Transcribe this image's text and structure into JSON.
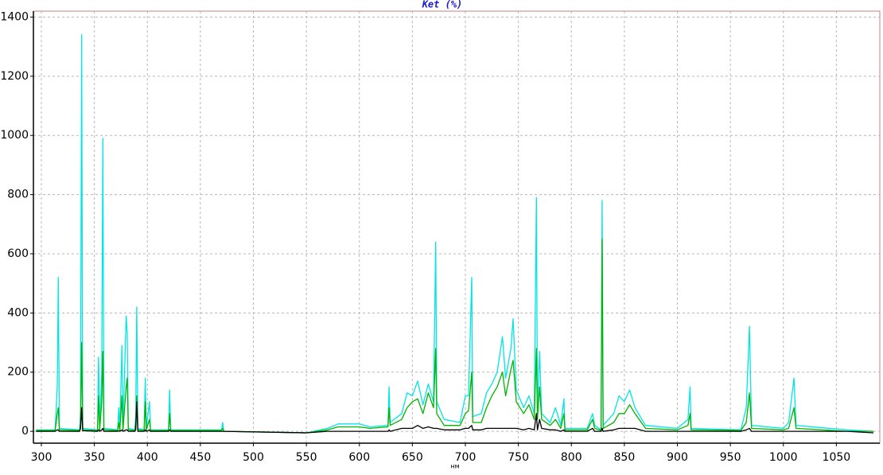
{
  "chart_data": {
    "type": "line",
    "title": "Ket (%)",
    "x_label": "нм",
    "x": [
      295,
      313,
      315,
      316,
      317,
      336,
      337,
      338,
      339,
      353,
      354,
      355,
      357,
      358,
      359,
      372,
      373,
      374,
      376,
      377,
      380,
      381,
      382,
      388,
      389,
      390,
      391,
      397,
      398,
      399,
      402,
      403,
      420,
      421,
      422,
      470,
      471,
      472,
      550,
      570,
      580,
      600,
      610,
      627,
      628,
      629,
      640,
      645,
      650,
      655,
      660,
      665,
      670,
      672,
      673,
      680,
      695,
      700,
      703,
      706,
      707,
      715,
      720,
      725,
      730,
      735,
      738,
      743,
      745,
      748,
      755,
      760,
      765,
      767,
      768,
      770,
      772,
      780,
      785,
      790,
      793,
      794,
      815,
      820,
      822,
      828,
      829,
      830,
      840,
      845,
      850,
      855,
      860,
      870,
      900,
      910,
      912,
      913,
      960,
      965,
      968,
      970,
      1000,
      1005,
      1010,
      1012,
      1060,
      1085
    ],
    "series": [
      {
        "color": "#00e5e5",
        "values": [
          5,
          5,
          150,
          520,
          10,
          5,
          70,
          1340,
          10,
          5,
          250,
          10,
          200,
          990,
          10,
          5,
          80,
          5,
          290,
          10,
          390,
          330,
          10,
          5,
          50,
          420,
          10,
          5,
          180,
          10,
          100,
          5,
          5,
          140,
          5,
          5,
          30,
          0,
          -5,
          10,
          25,
          25,
          15,
          20,
          150,
          30,
          60,
          130,
          120,
          170,
          90,
          160,
          100,
          640,
          100,
          40,
          30,
          120,
          120,
          520,
          50,
          60,
          130,
          160,
          200,
          320,
          180,
          280,
          380,
          140,
          80,
          120,
          60,
          790,
          60,
          270,
          60,
          30,
          80,
          20,
          110,
          10,
          10,
          60,
          20,
          5,
          780,
          20,
          60,
          120,
          100,
          140,
          80,
          20,
          10,
          40,
          150,
          10,
          5,
          80,
          355,
          20,
          10,
          30,
          180,
          20,
          5,
          0
        ]
      },
      {
        "color": "#00b400",
        "values": [
          3,
          3,
          60,
          80,
          5,
          3,
          30,
          300,
          5,
          3,
          120,
          5,
          100,
          270,
          5,
          3,
          30,
          3,
          120,
          5,
          150,
          180,
          5,
          3,
          20,
          120,
          5,
          3,
          100,
          5,
          40,
          3,
          3,
          60,
          3,
          3,
          10,
          0,
          -5,
          5,
          15,
          15,
          10,
          15,
          80,
          20,
          40,
          80,
          100,
          110,
          60,
          130,
          80,
          280,
          60,
          20,
          20,
          60,
          70,
          200,
          30,
          30,
          80,
          120,
          150,
          200,
          120,
          210,
          240,
          100,
          60,
          90,
          40,
          280,
          40,
          150,
          40,
          20,
          40,
          10,
          60,
          5,
          5,
          40,
          10,
          3,
          650,
          10,
          30,
          60,
          60,
          90,
          60,
          10,
          5,
          20,
          60,
          5,
          3,
          30,
          130,
          10,
          5,
          10,
          80,
          10,
          0,
          0
        ]
      },
      {
        "color": "#000000",
        "values": [
          0,
          0,
          5,
          5,
          0,
          0,
          10,
          80,
          2,
          0,
          5,
          0,
          5,
          10,
          0,
          0,
          2,
          0,
          5,
          0,
          5,
          5,
          0,
          0,
          5,
          100,
          0,
          0,
          5,
          0,
          5,
          0,
          0,
          5,
          0,
          0,
          0,
          0,
          -5,
          0,
          0,
          0,
          0,
          0,
          5,
          0,
          10,
          10,
          10,
          20,
          10,
          15,
          10,
          10,
          10,
          5,
          5,
          10,
          10,
          20,
          5,
          5,
          10,
          10,
          10,
          10,
          10,
          10,
          10,
          10,
          5,
          10,
          5,
          60,
          5,
          40,
          10,
          5,
          5,
          0,
          5,
          0,
          0,
          10,
          0,
          0,
          10,
          0,
          5,
          10,
          10,
          10,
          10,
          0,
          0,
          0,
          0,
          0,
          0,
          5,
          10,
          0,
          0,
          0,
          0,
          0,
          0,
          -5
        ]
      }
    ],
    "xlim": [
      292.5,
      1091
    ],
    "ylim": [
      -40,
      1420
    ],
    "xticks": [
      300,
      350,
      400,
      450,
      500,
      550,
      600,
      650,
      700,
      750,
      800,
      850,
      900,
      950,
      1000,
      1050
    ],
    "yticks": [
      0,
      200,
      400,
      600,
      800,
      1000,
      1200,
      1400
    ],
    "grid": true
  }
}
